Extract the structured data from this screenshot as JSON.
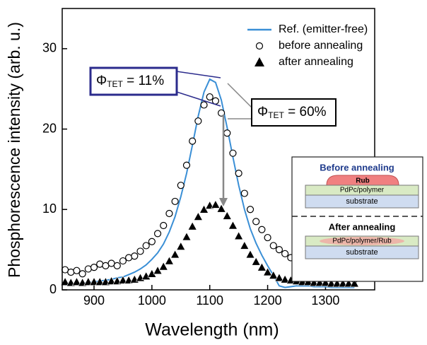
{
  "chart_data": {
    "type": "line",
    "xlabel": "Wavelength (nm)",
    "ylabel": "Phosphorescence intensity (arb. u.)",
    "xlim": [
      845,
      1385
    ],
    "ylim": [
      0,
      35
    ],
    "xticks": [
      900,
      1000,
      1100,
      1200,
      1300
    ],
    "yticks": [
      0,
      10,
      20,
      30
    ],
    "legend": "upper right",
    "x": [
      850,
      860,
      870,
      880,
      890,
      900,
      910,
      920,
      930,
      940,
      950,
      960,
      970,
      980,
      990,
      1000,
      1010,
      1020,
      1030,
      1040,
      1050,
      1060,
      1070,
      1080,
      1090,
      1100,
      1110,
      1120,
      1130,
      1140,
      1150,
      1160,
      1170,
      1180,
      1190,
      1200,
      1210,
      1220,
      1230,
      1240,
      1250,
      1260,
      1270,
      1280,
      1290,
      1300,
      1310,
      1320,
      1330,
      1340,
      1350
    ],
    "series": [
      {
        "name": "Ref. (emitter-free)",
        "color": "#3a8fd6",
        "marker": "line",
        "values": [
          0.6,
          0.7,
          0.8,
          0.8,
          0.9,
          1.0,
          1.1,
          1.2,
          1.3,
          1.5,
          1.6,
          1.9,
          2.2,
          2.6,
          3.1,
          3.8,
          4.6,
          5.7,
          7.2,
          9.1,
          11.6,
          14.5,
          18.0,
          21.6,
          24.6,
          26.2,
          25.8,
          23.6,
          20.2,
          16.5,
          13.0,
          10.0,
          7.6,
          5.8,
          4.3,
          3.0,
          1.8,
          0.5,
          0.3,
          0.4,
          0.5,
          0.5,
          0.5,
          0.4,
          0.4,
          0.4,
          0.3,
          0.3,
          0.3,
          0.3,
          0.3
        ]
      },
      {
        "name": "before annealing",
        "color": "#000000",
        "marker": "circle",
        "values": [
          2.5,
          2.2,
          2.4,
          2.0,
          2.6,
          2.8,
          3.2,
          3.0,
          3.3,
          3.0,
          3.6,
          4.0,
          4.2,
          4.8,
          5.5,
          6.0,
          7.0,
          8.0,
          9.5,
          11.0,
          13.0,
          15.5,
          18.5,
          21.0,
          23.0,
          24.0,
          23.5,
          22.0,
          19.5,
          17.0,
          14.5,
          12.0,
          10.0,
          8.5,
          7.5,
          6.5,
          5.5,
          5.0,
          4.5,
          4.0,
          3.5,
          3.2,
          3.0,
          2.6,
          2.4,
          2.2,
          2.0,
          1.8,
          1.6,
          1.5,
          1.3
        ]
      },
      {
        "name": "after annealing",
        "color": "#000000",
        "marker": "triangle",
        "values": [
          1.0,
          0.9,
          1.0,
          0.9,
          1.0,
          1.0,
          1.0,
          1.0,
          1.1,
          1.1,
          1.2,
          1.2,
          1.3,
          1.5,
          1.7,
          2.0,
          2.4,
          2.9,
          3.6,
          4.4,
          5.4,
          6.6,
          7.9,
          9.1,
          10.0,
          10.5,
          10.6,
          10.1,
          9.2,
          8.0,
          6.7,
          5.5,
          4.4,
          3.5,
          2.8,
          2.2,
          1.8,
          1.5,
          1.3,
          1.2,
          1.1,
          1.0,
          1.0,
          0.9,
          0.9,
          0.9,
          0.8,
          0.8,
          0.8,
          0.8,
          0.8
        ]
      }
    ],
    "annotations": [
      {
        "symbol": "Φ",
        "sub": "TET",
        "text": " = 11%"
      },
      {
        "symbol": "Φ",
        "sub": "TET",
        "text": " = 60%"
      }
    ],
    "inset": {
      "before_title": "Before annealing",
      "rub": "Rub",
      "layer": "PdPc/polymer",
      "substrate": "substrate",
      "after_title": "After annealing",
      "mixed_layer": "PdPc/polymer/Rub",
      "substrate_after": "substrate"
    }
  }
}
